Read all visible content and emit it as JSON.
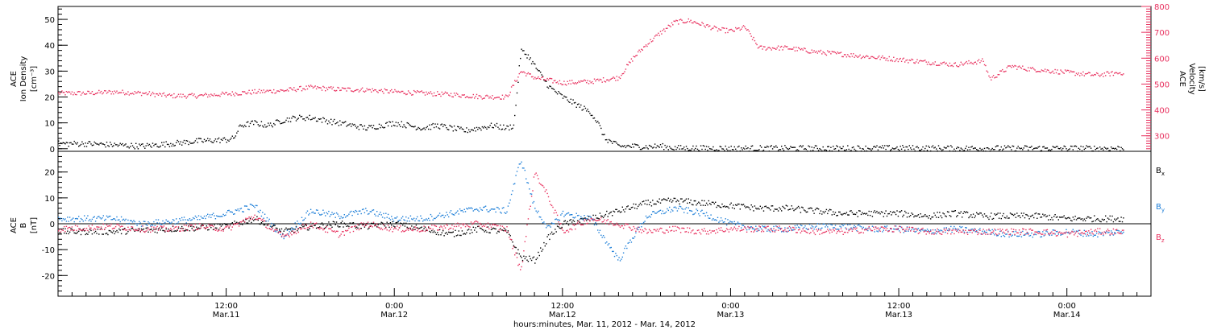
{
  "xaxis": {
    "title": "hours:minutes, Mar. 11, 2012 - Mar. 14, 2012",
    "ticks": [
      {
        "hour": 12,
        "time": "12:00",
        "date": "Mar.11"
      },
      {
        "hour": 24,
        "time": "0:00",
        "date": "Mar.12"
      },
      {
        "hour": 36,
        "time": "12:00",
        "date": "Mar.12"
      },
      {
        "hour": 48,
        "time": "0:00",
        "date": "Mar.13"
      },
      {
        "hour": 60,
        "time": "12:00",
        "date": "Mar.13"
      },
      {
        "hour": 72,
        "time": "0:00",
        "date": "Mar.14"
      }
    ],
    "range_hours": [
      0,
      78
    ]
  },
  "panels": {
    "top": {
      "left_label": [
        "ACE",
        "Ion Density",
        "[cm⁻³]"
      ],
      "right_label": [
        "ACE",
        "Velocity",
        "[km/s]"
      ],
      "left_ticks": [
        "0",
        "10",
        "20",
        "30",
        "40",
        "50"
      ],
      "right_ticks": [
        "300",
        "400",
        "500",
        "600",
        "700",
        "800"
      ]
    },
    "bottom": {
      "left_label": [
        "ACE",
        "B",
        "[nT]"
      ],
      "left_ticks": [
        "-20",
        "-10",
        "0",
        "10",
        "20"
      ],
      "legend": [
        {
          "base": "B",
          "sub": "x",
          "color": "#000000"
        },
        {
          "base": "B",
          "sub": "y",
          "color": "#1e7fd8"
        },
        {
          "base": "B",
          "sub": "z",
          "color": "#e8305e"
        }
      ]
    }
  },
  "chart_data": [
    {
      "type": "scatter",
      "title": "",
      "xlabel": "hours:minutes, Mar. 11, 2012 - Mar. 14, 2012",
      "x_unit": "hours since Mar. 11, 2012 00:00",
      "series": [
        {
          "name": "Ion Density",
          "axis": "left",
          "ylim": [
            -1,
            55
          ],
          "color": "#000000",
          "points": [
            [
              0,
              2
            ],
            [
              2,
              2
            ],
            [
              4,
              1.5
            ],
            [
              6,
              1
            ],
            [
              8,
              2
            ],
            [
              10,
              3
            ],
            [
              12,
              3.5
            ],
            [
              12.5,
              4
            ],
            [
              13,
              9
            ],
            [
              14,
              10
            ],
            [
              15,
              9
            ],
            [
              16,
              11
            ],
            [
              17,
              12
            ],
            [
              18,
              12
            ],
            [
              19,
              11
            ],
            [
              20,
              10
            ],
            [
              21,
              9
            ],
            [
              22,
              8
            ],
            [
              23,
              9
            ],
            [
              24,
              10
            ],
            [
              25,
              9
            ],
            [
              26,
              8
            ],
            [
              27,
              9
            ],
            [
              28,
              8
            ],
            [
              29,
              7
            ],
            [
              30,
              8
            ],
            [
              31,
              9
            ],
            [
              32,
              8
            ],
            [
              32.5,
              9
            ],
            [
              33,
              38
            ],
            [
              33.5,
              36
            ],
            [
              34,
              32
            ],
            [
              35,
              24
            ],
            [
              36,
              20
            ],
            [
              37,
              17
            ],
            [
              38,
              14
            ],
            [
              38.5,
              10
            ],
            [
              39,
              4
            ],
            [
              40,
              1
            ],
            [
              41,
              1
            ],
            [
              42,
              0.8
            ],
            [
              43,
              1
            ],
            [
              44,
              0.3
            ],
            [
              48,
              0.2
            ],
            [
              52,
              0.2
            ],
            [
              56,
              0.2
            ],
            [
              60,
              0.3
            ],
            [
              64,
              0.2
            ],
            [
              68,
              0.2
            ],
            [
              72,
              0.2
            ],
            [
              76,
              0.2
            ]
          ]
        },
        {
          "name": "Velocity",
          "axis": "right",
          "ylim": [
            240,
            800
          ],
          "color": "#e8305e",
          "points": [
            [
              0,
              465
            ],
            [
              2,
              465
            ],
            [
              4,
              470
            ],
            [
              6,
              465
            ],
            [
              8,
              455
            ],
            [
              10,
              455
            ],
            [
              12,
              462
            ],
            [
              14,
              470
            ],
            [
              16,
              475
            ],
            [
              18,
              487
            ],
            [
              20,
              480
            ],
            [
              22,
              478
            ],
            [
              24,
              470
            ],
            [
              26,
              465
            ],
            [
              28,
              460
            ],
            [
              30,
              452
            ],
            [
              32,
              450
            ],
            [
              33,
              550
            ],
            [
              34,
              525
            ],
            [
              36,
              505
            ],
            [
              38,
              510
            ],
            [
              40,
              525
            ],
            [
              41,
              600
            ],
            [
              42,
              655
            ],
            [
              43,
              700
            ],
            [
              44,
              740
            ],
            [
              45,
              745
            ],
            [
              46,
              730
            ],
            [
              47,
              712
            ],
            [
              48,
              705
            ],
            [
              49,
              720
            ],
            [
              50,
              640
            ],
            [
              52,
              640
            ],
            [
              54,
              625
            ],
            [
              56,
              615
            ],
            [
              58,
              605
            ],
            [
              60,
              595
            ],
            [
              62,
              585
            ],
            [
              64,
              575
            ],
            [
              66,
              590
            ],
            [
              66.5,
              520
            ],
            [
              68,
              570
            ],
            [
              69,
              560
            ],
            [
              70,
              555
            ],
            [
              72,
              545
            ],
            [
              74,
              535
            ],
            [
              76,
              545
            ]
          ]
        }
      ]
    },
    {
      "type": "scatter",
      "title": "",
      "xlabel": "hours:minutes, Mar. 11, 2012 - Mar. 14, 2012",
      "ylabel": "B [nT]",
      "ylim": [
        -28,
        28
      ],
      "x_unit": "hours since Mar. 11, 2012 00:00",
      "series": [
        {
          "name": "Bx",
          "color": "#000000",
          "points": [
            [
              0,
              -3
            ],
            [
              4,
              -3
            ],
            [
              8,
              -2
            ],
            [
              12,
              -1
            ],
            [
              14,
              2
            ],
            [
              16,
              -3
            ],
            [
              18,
              -1
            ],
            [
              20,
              0
            ],
            [
              22,
              -1
            ],
            [
              24,
              0
            ],
            [
              26,
              -2
            ],
            [
              28,
              -4
            ],
            [
              30,
              -2
            ],
            [
              32,
              -3
            ],
            [
              33,
              -13
            ],
            [
              34,
              -14
            ],
            [
              35,
              -5
            ],
            [
              36,
              0
            ],
            [
              38,
              2
            ],
            [
              40,
              5
            ],
            [
              42,
              8
            ],
            [
              44,
              9
            ],
            [
              46,
              8
            ],
            [
              48,
              7
            ],
            [
              50,
              6
            ],
            [
              52,
              6
            ],
            [
              54,
              5
            ],
            [
              56,
              4
            ],
            [
              58,
              4
            ],
            [
              60,
              4
            ],
            [
              62,
              3
            ],
            [
              64,
              4
            ],
            [
              66,
              3
            ],
            [
              68,
              3
            ],
            [
              70,
              3
            ],
            [
              72,
              2
            ],
            [
              74,
              2
            ],
            [
              76,
              2
            ]
          ]
        },
        {
          "name": "By",
          "color": "#1e7fd8",
          "points": [
            [
              0,
              2
            ],
            [
              4,
              2
            ],
            [
              6,
              0
            ],
            [
              8,
              1
            ],
            [
              10,
              2
            ],
            [
              12,
              4
            ],
            [
              14,
              7
            ],
            [
              16,
              -5
            ],
            [
              18,
              5
            ],
            [
              20,
              3
            ],
            [
              22,
              5
            ],
            [
              24,
              2
            ],
            [
              26,
              2
            ],
            [
              28,
              4
            ],
            [
              30,
              6
            ],
            [
              32,
              5
            ],
            [
              33,
              25
            ],
            [
              34,
              6
            ],
            [
              35,
              -2
            ],
            [
              36,
              4
            ],
            [
              38,
              2
            ],
            [
              40,
              -14
            ],
            [
              41,
              -5
            ],
            [
              42,
              3
            ],
            [
              44,
              6
            ],
            [
              46,
              4
            ],
            [
              48,
              0
            ],
            [
              50,
              -2
            ],
            [
              52,
              -2
            ],
            [
              54,
              -1
            ],
            [
              56,
              -1
            ],
            [
              58,
              -2
            ],
            [
              60,
              -2
            ],
            [
              62,
              -3
            ],
            [
              64,
              -2
            ],
            [
              66,
              -3
            ],
            [
              68,
              -4
            ],
            [
              70,
              -4
            ],
            [
              72,
              -3
            ],
            [
              74,
              -4
            ],
            [
              76,
              -3
            ]
          ]
        },
        {
          "name": "Bz",
          "color": "#e8305e",
          "points": [
            [
              0,
              -2
            ],
            [
              4,
              -1
            ],
            [
              6,
              -2
            ],
            [
              8,
              -2
            ],
            [
              10,
              -1
            ],
            [
              12,
              -2
            ],
            [
              14,
              3
            ],
            [
              16,
              -5
            ],
            [
              18,
              0
            ],
            [
              20,
              -4
            ],
            [
              22,
              0
            ],
            [
              24,
              -2
            ],
            [
              26,
              -2
            ],
            [
              28,
              -1
            ],
            [
              30,
              0
            ],
            [
              32,
              -2
            ],
            [
              33,
              -18
            ],
            [
              34,
              20
            ],
            [
              35,
              10
            ],
            [
              36,
              -3
            ],
            [
              38,
              2
            ],
            [
              40,
              0
            ],
            [
              42,
              -3
            ],
            [
              44,
              -2
            ],
            [
              46,
              -3
            ],
            [
              48,
              -2
            ],
            [
              50,
              -2
            ],
            [
              52,
              -2
            ],
            [
              54,
              -3
            ],
            [
              56,
              -3
            ],
            [
              58,
              -2
            ],
            [
              60,
              -2
            ],
            [
              62,
              -3
            ],
            [
              64,
              -3
            ],
            [
              66,
              -3
            ],
            [
              68,
              -3
            ],
            [
              70,
              -3
            ],
            [
              72,
              -4
            ],
            [
              74,
              -3
            ],
            [
              76,
              -3
            ]
          ]
        }
      ]
    }
  ]
}
